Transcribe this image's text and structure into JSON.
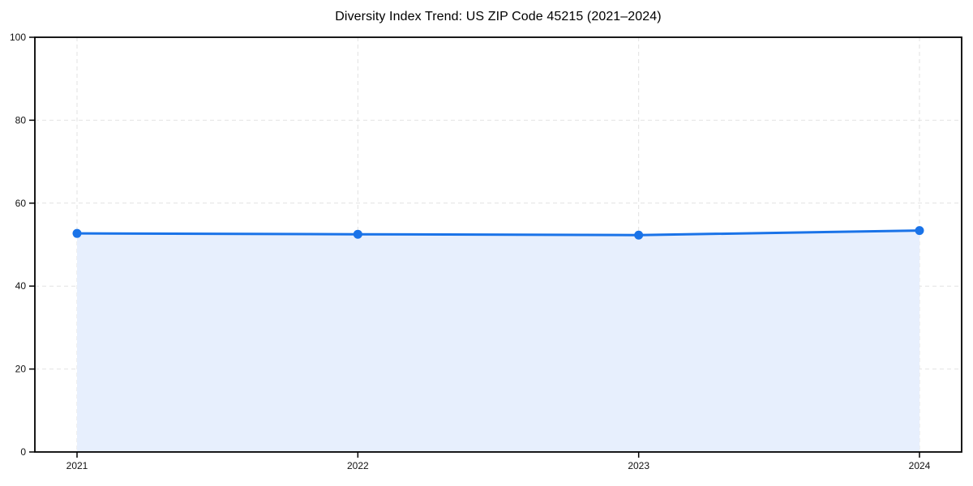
{
  "chart_data": {
    "type": "area",
    "title": "Diversity Index Trend: US ZIP Code 45215 (2021–2024)",
    "categories": [
      "2021",
      "2022",
      "2023",
      "2024"
    ],
    "series": [
      {
        "name": "Diversity Index",
        "values": [
          52.7,
          52.5,
          52.3,
          53.4
        ]
      }
    ],
    "xlabel": "",
    "ylabel": "",
    "ylim": [
      0,
      100
    ],
    "y_ticks": [
      0,
      20,
      40,
      60,
      80,
      100
    ],
    "grid": "dashed-both-axes",
    "legend": "none",
    "marker": "circle",
    "colors": {
      "line": "#1a73e8",
      "marker": "#1a73e8",
      "fill": "#e7effd",
      "grid": "#e2e2e2",
      "axis": "#000000",
      "text": "#111111",
      "background": "#ffffff"
    }
  }
}
